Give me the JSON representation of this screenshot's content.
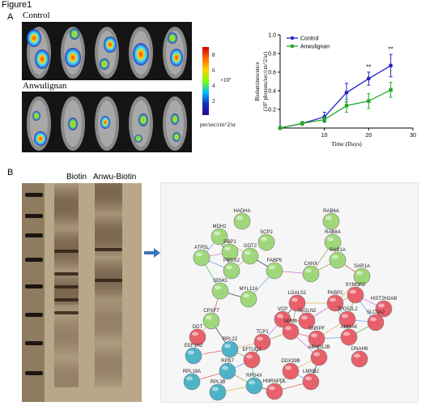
{
  "figure": {
    "title": "Figure1"
  },
  "panel_a": {
    "label": "A",
    "control_label": "Control",
    "treatment_label": "Anwulignan",
    "colorbar": {
      "ticks": [
        "8",
        "6",
        "4",
        "2"
      ],
      "scale_label": "×10⁷",
      "unit_label": "per/sec/cm^2/sr",
      "colors": [
        "#d00000",
        "#ff6a00",
        "#ffd000",
        "#7fff00",
        "#00c0ff",
        "#1030c0",
        "#2a0a90"
      ]
    }
  },
  "chart_data": {
    "type": "line",
    "x": [
      0,
      5,
      10,
      15,
      20,
      25
    ],
    "xlim": [
      0,
      30
    ],
    "ylim": [
      0,
      1.0
    ],
    "xticks": [
      "10",
      "20",
      "30"
    ],
    "yticks": [
      "0.2",
      "0.4",
      "0.6",
      "0.8",
      "1.0"
    ],
    "xlabel": "Time (Days)",
    "ylabel_lines": [
      "Bioluminescence",
      "(10⁷ photons/sec/cm^2/sr)"
    ],
    "series": [
      {
        "name": "Control",
        "color": "#2222cc",
        "marker": "circle",
        "values": [
          0.0,
          0.05,
          0.12,
          0.38,
          0.53,
          0.67
        ],
        "errors": [
          0.0,
          0.02,
          0.05,
          0.1,
          0.07,
          0.12
        ]
      },
      {
        "name": "Anwulignan",
        "color": "#22aa22",
        "marker": "square",
        "values": [
          0.0,
          0.05,
          0.09,
          0.24,
          0.29,
          0.41
        ],
        "errors": [
          0.0,
          0.02,
          0.03,
          0.07,
          0.08,
          0.08
        ]
      }
    ],
    "annotations": [
      {
        "x": 20,
        "y": 0.63,
        "text": "**"
      },
      {
        "x": 25,
        "y": 0.82,
        "text": "**"
      }
    ]
  },
  "panel_b": {
    "label": "B",
    "lane_labels": [
      "Biotin",
      "Anwu-Biotin"
    ],
    "network_nodes": [
      {
        "name": "HADHA",
        "color": "#9fd87a"
      },
      {
        "name": "RAB6A",
        "color": "#9fd87a"
      },
      {
        "name": "MDH2",
        "color": "#9fd87a"
      },
      {
        "name": "SCP2",
        "color": "#9fd87a"
      },
      {
        "name": "RAB8A",
        "color": "#9fd87a"
      },
      {
        "name": "ATP5L",
        "color": "#9fd87a"
      },
      {
        "name": "RBP1",
        "color": "#9fd87a"
      },
      {
        "name": "GOT2",
        "color": "#9fd87a"
      },
      {
        "name": "RAB1A",
        "color": "#9fd87a"
      },
      {
        "name": "PRDX2",
        "color": "#9fd87a"
      },
      {
        "name": "FABP5",
        "color": "#9fd87a"
      },
      {
        "name": "SAR1A",
        "color": "#9fd87a"
      },
      {
        "name": "CANX",
        "color": "#9fd87a"
      },
      {
        "name": "SEMG",
        "color": "#9fd87a"
      },
      {
        "name": "SYNGR2",
        "color": "#e8606a"
      },
      {
        "name": "MYL12A",
        "color": "#9fd87a"
      },
      {
        "name": "LGALS1",
        "color": "#e8606a"
      },
      {
        "name": "FKBP2",
        "color": "#e8606a"
      },
      {
        "name": "HIST2H2AB",
        "color": "#e8606a"
      },
      {
        "name": "CPSF7",
        "color": "#9fd87a"
      },
      {
        "name": "VCP",
        "color": "#e8606a"
      },
      {
        "name": "TAGLN2",
        "color": "#e8606a"
      },
      {
        "name": "SLC3A2",
        "color": "#e8606a"
      },
      {
        "name": "TPD52L2",
        "color": "#e8606a"
      },
      {
        "name": "DDT",
        "color": "#e8606a"
      },
      {
        "name": "NPM1",
        "color": "#e8606a"
      },
      {
        "name": "SNRPF",
        "color": "#e8606a"
      },
      {
        "name": "AHNAK",
        "color": "#e8606a"
      },
      {
        "name": "TCP1",
        "color": "#e8606a"
      },
      {
        "name": "RPL22",
        "color": "#4fb3c8"
      },
      {
        "name": "EEF1A2",
        "color": "#4fb3c8"
      },
      {
        "name": "EFTUD2",
        "color": "#e8606a"
      },
      {
        "name": "ABHD12B",
        "color": "#e8606a"
      },
      {
        "name": "DNAH8",
        "color": "#e8606a"
      },
      {
        "name": "RPS7",
        "color": "#4fb3c8"
      },
      {
        "name": "DDX39B",
        "color": "#e8606a"
      },
      {
        "name": "RPL18A",
        "color": "#4fb3c8"
      },
      {
        "name": "RPS4X",
        "color": "#4fb3c8"
      },
      {
        "name": "LMNB2",
        "color": "#e8606a"
      },
      {
        "name": "RPL39",
        "color": "#4fb3c8"
      },
      {
        "name": "HNRNPDL",
        "color": "#e8606a"
      }
    ]
  }
}
